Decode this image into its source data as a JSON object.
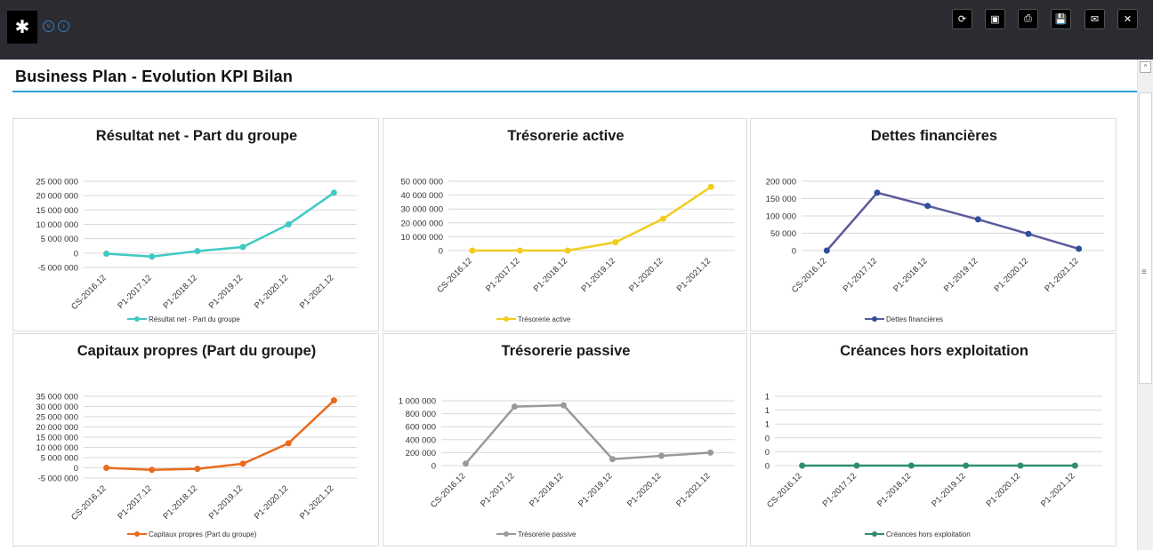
{
  "header": {
    "buttons": [
      {
        "name": "refresh-button",
        "icon": "refresh-icon",
        "glyph": "⟳"
      },
      {
        "name": "export-button",
        "icon": "export-file-icon",
        "glyph": "▣"
      },
      {
        "name": "print-button",
        "icon": "print-icon",
        "glyph": "⎙"
      },
      {
        "name": "save-button",
        "icon": "save-icon",
        "glyph": "💾"
      },
      {
        "name": "mail-button",
        "icon": "mail-icon",
        "glyph": "✉"
      },
      {
        "name": "close-button",
        "icon": "close-icon",
        "glyph": "✕"
      }
    ]
  },
  "page": {
    "title": "Business Plan - Evolution KPI Bilan"
  },
  "chart_data": [
    {
      "type": "line",
      "title": "Résultat net - Part du groupe",
      "categories": [
        "CS-2016.12",
        "P1-2017.12",
        "P1-2018.12",
        "P1-2019.12",
        "P1-2020.12",
        "P1-2021.12"
      ],
      "series": [
        {
          "name": "Résultat net - Part du groupe",
          "values": [
            -200000,
            -1200000,
            700000,
            2100000,
            10000000,
            21000000
          ]
        }
      ],
      "yticks": [
        -5000000,
        0,
        5000000,
        10000000,
        15000000,
        20000000,
        25000000
      ],
      "ytick_labels": [
        "-5 000 000",
        "0",
        "5 000 000",
        "10 000 000",
        "15 000 000",
        "20 000 000",
        "25 000 000"
      ],
      "ylim": [
        -5000000,
        25000000
      ],
      "color": "#3fc9c3",
      "legend": "bottom"
    },
    {
      "type": "line",
      "title": "Trésorerie active",
      "categories": [
        "CS-2016.12",
        "P1-2017.12",
        "P1-2018.12",
        "P1-2019.12",
        "P1-2020.12",
        "P1-2021.12"
      ],
      "series": [
        {
          "name": "Trésorerie active",
          "values": [
            0,
            0,
            0,
            6000000,
            23000000,
            46000000
          ]
        }
      ],
      "yticks": [
        0,
        10000000,
        20000000,
        30000000,
        40000000,
        50000000
      ],
      "ytick_labels": [
        "0",
        "10 000 000",
        "20 000 000",
        "30 000 000",
        "40 000 000",
        "50 000 000"
      ],
      "ylim": [
        0,
        50000000
      ],
      "color": "#f2cc1f",
      "legend": "bottom"
    },
    {
      "type": "line",
      "title": "Dettes financières",
      "categories": [
        "CS-2016.12",
        "P1-2017.12",
        "P1-2018.12",
        "P1-2019.12",
        "P1-2020.12",
        "P1-2021.12"
      ],
      "series": [
        {
          "name": "Dettes financières",
          "values": [
            0,
            167000,
            129000,
            90000,
            48000,
            5000
          ]
        }
      ],
      "yticks": [
        0,
        50000,
        100000,
        150000,
        200000
      ],
      "ytick_labels": [
        "0",
        "50 000",
        "100 000",
        "150 000",
        "200 000"
      ],
      "ylim": [
        0,
        200000
      ],
      "color": "#5b5b9c",
      "marker_color": "#2e4f9c",
      "legend": "bottom"
    },
    {
      "type": "line",
      "title": "Capitaux propres (Part du groupe)",
      "categories": [
        "CS-2016.12",
        "P1-2017.12",
        "P1-2018.12",
        "P1-2019.12",
        "P1-2020.12",
        "P1-2021.12"
      ],
      "series": [
        {
          "name": "Capitaux propres (Part du groupe)",
          "values": [
            0,
            -1000000,
            -500000,
            2000000,
            12000000,
            33000000
          ]
        }
      ],
      "yticks": [
        -5000000,
        0,
        5000000,
        10000000,
        15000000,
        20000000,
        25000000,
        30000000,
        35000000
      ],
      "ytick_labels": [
        "-5 000 000",
        "0",
        "5 000 000",
        "10 000 000",
        "15 000 000",
        "20 000 000",
        "25 000 000",
        "30 000 000",
        "35 000 000"
      ],
      "ylim": [
        -5000000,
        35000000
      ],
      "color": "#ea6a1e",
      "legend": "bottom"
    },
    {
      "type": "line",
      "title": "Trésorerie passive",
      "categories": [
        "CS-2016.12",
        "P1-2017.12",
        "P1-2018.12",
        "P1-2019.12",
        "P1-2020.12",
        "P1-2021.12"
      ],
      "series": [
        {
          "name": "Trésorerie passive",
          "values": [
            30000,
            910000,
            930000,
            100000,
            150000,
            200000
          ]
        }
      ],
      "yticks": [
        0,
        200000,
        400000,
        600000,
        800000,
        1000000
      ],
      "ytick_labels": [
        "0",
        "200 000",
        "400 000",
        "600 000",
        "800 000",
        "1 000 000"
      ],
      "ylim": [
        0,
        1000000
      ],
      "color": "#999999",
      "legend": "bottom"
    },
    {
      "type": "line",
      "title": "Créances hors exploitation",
      "categories": [
        "CS-2016.12",
        "P1-2017.12",
        "P1-2018.12",
        "P1-2019.12",
        "P1-2020.12",
        "P1-2021.12"
      ],
      "series": [
        {
          "name": "Créances hors exploitation",
          "values": [
            0,
            0,
            0,
            0,
            0,
            0
          ]
        }
      ],
      "yticks": [
        0,
        0.25,
        0.5,
        0.75,
        1,
        1.25
      ],
      "ytick_labels": [
        "0",
        "0",
        "0",
        "1",
        "1",
        "1"
      ],
      "ylim": [
        0,
        1.25
      ],
      "color": "#2e8f6e",
      "legend": "bottom"
    }
  ]
}
